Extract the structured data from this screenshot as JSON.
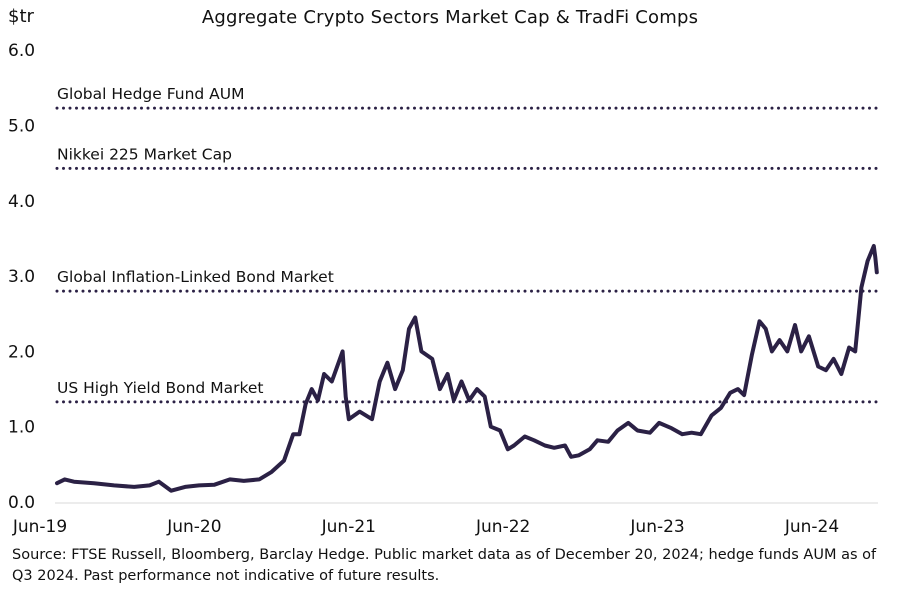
{
  "chart_data": {
    "type": "line",
    "title": "Aggregate Crypto Sectors Market Cap & TradFi Comps",
    "ylabel": "$tr",
    "xlabel": "",
    "ylim": [
      0,
      6
    ],
    "yticks": [
      "0.0",
      "1.0",
      "2.0",
      "3.0",
      "4.0",
      "5.0",
      "6.0"
    ],
    "xticks": [
      {
        "label": "Jun-19",
        "x": 2019.42
      },
      {
        "label": "Jun-20",
        "x": 2020.42
      },
      {
        "label": "Jun-21",
        "x": 2021.42
      },
      {
        "label": "Jun-22",
        "x": 2022.42
      },
      {
        "label": "Jun-23",
        "x": 2023.42
      },
      {
        "label": "Jun-24",
        "x": 2024.42
      }
    ],
    "grid": false,
    "reference_lines": [
      {
        "label": "Global Hedge Fund AUM",
        "value": 5.23
      },
      {
        "label": "Nikkei 225 Market Cap",
        "value": 4.43
      },
      {
        "label": "Global Inflation-Linked Bond Market",
        "value": 2.8
      },
      {
        "label": "US High Yield Bond Market",
        "value": 1.33
      }
    ],
    "series": [
      {
        "name": "Aggregate Crypto Sectors Market Cap",
        "color": "#2b2145",
        "x": [
          2019.53,
          2019.58,
          2019.64,
          2019.77,
          2019.9,
          2020.03,
          2020.13,
          2020.19,
          2020.27,
          2020.36,
          2020.45,
          2020.55,
          2020.65,
          2020.74,
          2020.84,
          2020.92,
          2021.0,
          2021.06,
          2021.1,
          2021.14,
          2021.18,
          2021.22,
          2021.26,
          2021.31,
          2021.38,
          2021.4,
          2021.42,
          2021.49,
          2021.57,
          2021.62,
          2021.67,
          2021.72,
          2021.77,
          2021.81,
          2021.85,
          2021.89,
          2021.96,
          2022.01,
          2022.06,
          2022.1,
          2022.15,
          2022.2,
          2022.25,
          2022.3,
          2022.34,
          2022.4,
          2022.45,
          2022.49,
          2022.56,
          2022.62,
          2022.69,
          2022.75,
          2022.82,
          2022.86,
          2022.91,
          2022.98,
          2023.03,
          2023.1,
          2023.16,
          2023.23,
          2023.29,
          2023.37,
          2023.43,
          2023.51,
          2023.58,
          2023.64,
          2023.7,
          2023.77,
          2023.83,
          2023.89,
          2023.94,
          2023.98,
          2024.03,
          2024.08,
          2024.12,
          2024.16,
          2024.21,
          2024.26,
          2024.31,
          2024.35,
          2024.4,
          2024.46,
          2024.51,
          2024.56,
          2024.61,
          2024.66,
          2024.7,
          2024.74,
          2024.78,
          2024.82,
          2024.83,
          2024.84
        ],
        "values": [
          0.25,
          0.3,
          0.27,
          0.25,
          0.22,
          0.2,
          0.22,
          0.27,
          0.15,
          0.2,
          0.22,
          0.23,
          0.3,
          0.28,
          0.3,
          0.4,
          0.55,
          0.9,
          0.9,
          1.3,
          1.5,
          1.35,
          1.7,
          1.6,
          2.0,
          1.4,
          1.1,
          1.2,
          1.1,
          1.6,
          1.85,
          1.5,
          1.75,
          2.3,
          2.45,
          2.0,
          1.9,
          1.5,
          1.7,
          1.35,
          1.6,
          1.35,
          1.5,
          1.4,
          1.0,
          0.95,
          0.7,
          0.75,
          0.87,
          0.82,
          0.75,
          0.72,
          0.75,
          0.6,
          0.62,
          0.7,
          0.82,
          0.8,
          0.95,
          1.05,
          0.95,
          0.92,
          1.05,
          0.98,
          0.9,
          0.92,
          0.9,
          1.15,
          1.25,
          1.45,
          1.5,
          1.42,
          1.95,
          2.4,
          2.3,
          2.0,
          2.15,
          2.0,
          2.35,
          2.0,
          2.2,
          1.8,
          1.75,
          1.9,
          1.7,
          2.05,
          2.0,
          2.85,
          3.2,
          3.4,
          3.25,
          3.05
        ]
      }
    ]
  },
  "source": "Source: FTSE Russell, Bloomberg, Barclay Hedge. Public market data as of December 20, 2024; hedge funds AUM as of Q3 2024. Past performance not indicative of future results."
}
